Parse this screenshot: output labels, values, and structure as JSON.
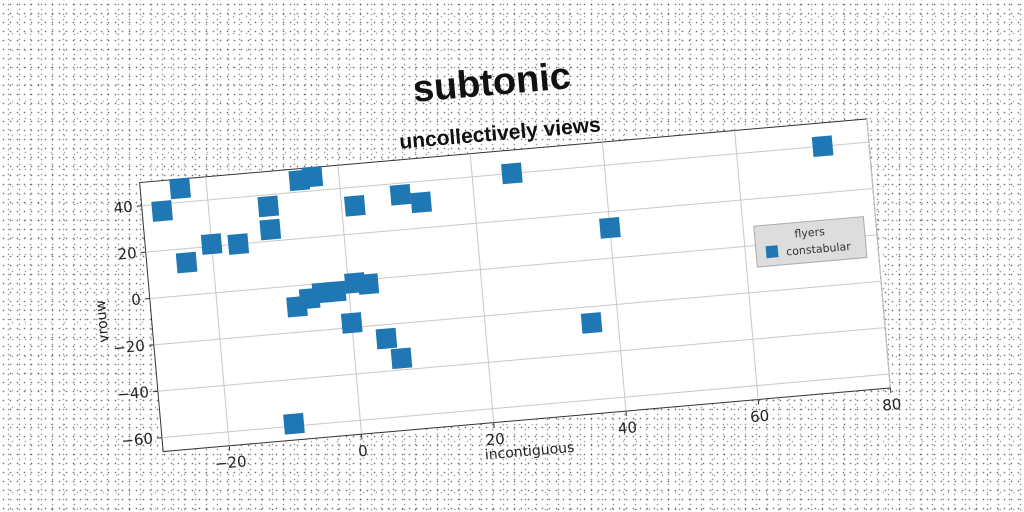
{
  "chart_data": {
    "type": "scatter",
    "title": "subtonic",
    "subtitle": "uncollectively views",
    "xlabel": "incontiguous",
    "ylabel": "vrouw",
    "xlim": [
      -30,
      80
    ],
    "ylim": [
      -66,
      50
    ],
    "xticks": [
      -20,
      0,
      20,
      40,
      60,
      80
    ],
    "yticks": [
      -60,
      -40,
      -20,
      0,
      20,
      40
    ],
    "grid": true,
    "legend": {
      "title": "flyers",
      "placement": "right",
      "entries": [
        "constabular"
      ]
    },
    "colors": {
      "series": "#1f77b4"
    },
    "series": [
      {
        "name": "constabular",
        "points": [
          [
            -27,
            37
          ],
          [
            -24,
            46
          ],
          [
            -24,
            14
          ],
          [
            -20,
            21
          ],
          [
            -16,
            20
          ],
          [
            -11,
            35
          ],
          [
            -11,
            25
          ],
          [
            -6,
            45
          ],
          [
            -4,
            46
          ],
          [
            -8,
            -9
          ],
          [
            -6,
            -6
          ],
          [
            -4,
            -4
          ],
          [
            -2,
            -4
          ],
          [
            0,
            -18
          ],
          [
            1,
            -1
          ],
          [
            3,
            -2
          ],
          [
            2,
            32
          ],
          [
            5,
            -26
          ],
          [
            7,
            -35
          ],
          [
            9,
            35
          ],
          [
            12,
            31
          ],
          [
            26,
            40
          ],
          [
            36,
            -27
          ],
          [
            40,
            13
          ],
          [
            73,
            40
          ],
          [
            -10,
            -59
          ]
        ]
      }
    ]
  }
}
